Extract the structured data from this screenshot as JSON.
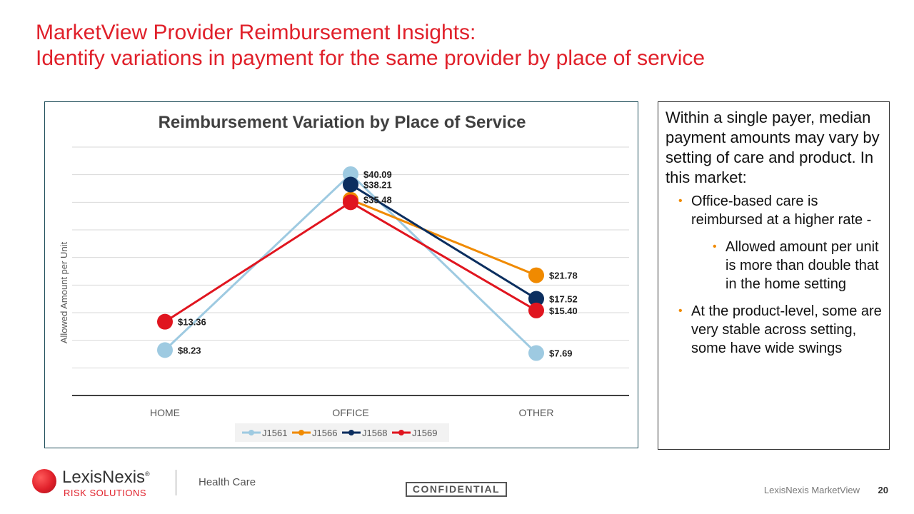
{
  "slide": {
    "title_line1": "MarketView Provider Reimbursement Insights:",
    "title_line2": "Identify variations in payment for the same provider by place of service"
  },
  "colors": {
    "J1561": "#9ecae1",
    "J1566": "#f08a00",
    "J1568": "#0b2e5f",
    "J1569": "#e0151f",
    "title": "#e0202a"
  },
  "chart_data": {
    "type": "line",
    "title": "Reimbursement Variation by Place of Service",
    "ylabel": "Allowed Amount per Unit",
    "xlabel": "",
    "categories": [
      "HOME",
      "OFFICE",
      "OTHER"
    ],
    "ylim": [
      0,
      45
    ],
    "y_grid_step": 5,
    "grid": true,
    "legend": "bottom",
    "series": [
      {
        "name": "J1561",
        "values": [
          8.23,
          40.09,
          7.69
        ],
        "labels": [
          "$8.23",
          "$40.09",
          "$7.69"
        ]
      },
      {
        "name": "J1566",
        "values": [
          null,
          35.48,
          21.78
        ],
        "labels": [
          "",
          "$35.48",
          "$21.78"
        ]
      },
      {
        "name": "J1568",
        "values": [
          null,
          38.21,
          17.52
        ],
        "labels": [
          "",
          "$38.21",
          "$17.52"
        ]
      },
      {
        "name": "J1569",
        "values": [
          13.36,
          35.0,
          15.4
        ],
        "labels": [
          "$13.36",
          "",
          "$15.40"
        ]
      }
    ]
  },
  "sidebar": {
    "intro": "Within a single payer, median payment amounts may vary by setting of care and product. In this market:",
    "bullets": [
      "Office-based care is reimbursed at a higher rate -",
      "Allowed amount per unit is more than double that in the home setting",
      "At the product-level, some are very stable across setting, some have wide swings"
    ]
  },
  "footer": {
    "logo_word": "LexisNexis",
    "logo_mark": "®",
    "logo_sub": "RISK SOLUTIONS",
    "division": "Health Care",
    "confidential": "CONFIDENTIAL",
    "product": "LexisNexis MarketView",
    "page_number": "20"
  }
}
